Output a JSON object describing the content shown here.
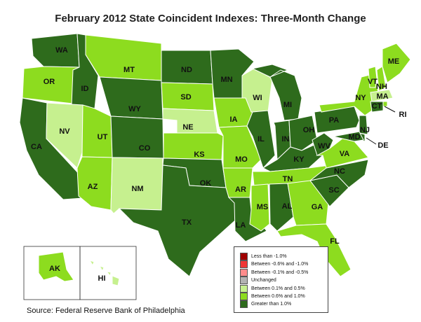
{
  "title": "February 2012 State Coincident Indexes: Three-Month Change",
  "source": "Source: Federal Reserve Bank of Philadelphia",
  "colors": {
    "dark": "#2e6b1c",
    "mid": "#8ddc1f",
    "light": "#c6f08f",
    "unchanged": "#b3b3b3",
    "neg_light": "#ff8c8c",
    "neg_mid": "#f03535",
    "neg_dark": "#a00000"
  },
  "legend": [
    {
      "label": "Less than -1.0%",
      "color": "#a00000"
    },
    {
      "label": "Between -0.6% and -1.0%",
      "color": "#f03535"
    },
    {
      "label": "Between -0.1% and -0.5%",
      "color": "#ff8c8c"
    },
    {
      "label": "Unchanged",
      "color": "#b3b3b3"
    },
    {
      "label": "Between 0.1% and 0.5%",
      "color": "#c6f08f"
    },
    {
      "label": "Between 0.6% and 1.0%",
      "color": "#8ddc1f"
    },
    {
      "label": "Greater than 1.0%",
      "color": "#2e6b1c"
    }
  ],
  "states": [
    {
      "abbr": "WA",
      "cat": "dark"
    },
    {
      "abbr": "OR",
      "cat": "mid"
    },
    {
      "abbr": "CA",
      "cat": "dark"
    },
    {
      "abbr": "ID",
      "cat": "dark"
    },
    {
      "abbr": "NV",
      "cat": "light"
    },
    {
      "abbr": "MT",
      "cat": "mid"
    },
    {
      "abbr": "WY",
      "cat": "dark"
    },
    {
      "abbr": "UT",
      "cat": "mid"
    },
    {
      "abbr": "AZ",
      "cat": "mid"
    },
    {
      "abbr": "CO",
      "cat": "dark"
    },
    {
      "abbr": "NM",
      "cat": "light"
    },
    {
      "abbr": "ND",
      "cat": "dark"
    },
    {
      "abbr": "SD",
      "cat": "mid"
    },
    {
      "abbr": "NE",
      "cat": "light"
    },
    {
      "abbr": "KS",
      "cat": "mid"
    },
    {
      "abbr": "OK",
      "cat": "dark"
    },
    {
      "abbr": "TX",
      "cat": "dark"
    },
    {
      "abbr": "MN",
      "cat": "dark"
    },
    {
      "abbr": "IA",
      "cat": "mid"
    },
    {
      "abbr": "MO",
      "cat": "mid"
    },
    {
      "abbr": "AR",
      "cat": "mid"
    },
    {
      "abbr": "LA",
      "cat": "dark"
    },
    {
      "abbr": "WI",
      "cat": "light"
    },
    {
      "abbr": "IL",
      "cat": "dark"
    },
    {
      "abbr": "MI",
      "cat": "dark"
    },
    {
      "abbr": "IN",
      "cat": "dark"
    },
    {
      "abbr": "OH",
      "cat": "dark"
    },
    {
      "abbr": "KY",
      "cat": "dark"
    },
    {
      "abbr": "TN",
      "cat": "mid"
    },
    {
      "abbr": "MS",
      "cat": "mid"
    },
    {
      "abbr": "AL",
      "cat": "dark"
    },
    {
      "abbr": "GA",
      "cat": "mid"
    },
    {
      "abbr": "FL",
      "cat": "mid"
    },
    {
      "abbr": "SC",
      "cat": "dark"
    },
    {
      "abbr": "NC",
      "cat": "dark"
    },
    {
      "abbr": "VA",
      "cat": "mid"
    },
    {
      "abbr": "WV",
      "cat": "dark"
    },
    {
      "abbr": "PA",
      "cat": "dark"
    },
    {
      "abbr": "NY",
      "cat": "mid"
    },
    {
      "abbr": "VT",
      "cat": "mid"
    },
    {
      "abbr": "NH",
      "cat": "mid"
    },
    {
      "abbr": "ME",
      "cat": "mid"
    },
    {
      "abbr": "MA",
      "cat": "light"
    },
    {
      "abbr": "RI",
      "cat": "mid"
    },
    {
      "abbr": "CT",
      "cat": "dark"
    },
    {
      "abbr": "NJ",
      "cat": "dark"
    },
    {
      "abbr": "DE",
      "cat": "dark"
    },
    {
      "abbr": "MD",
      "cat": "dark"
    },
    {
      "abbr": "AK",
      "cat": "mid"
    },
    {
      "abbr": "HI",
      "cat": "light"
    }
  ]
}
